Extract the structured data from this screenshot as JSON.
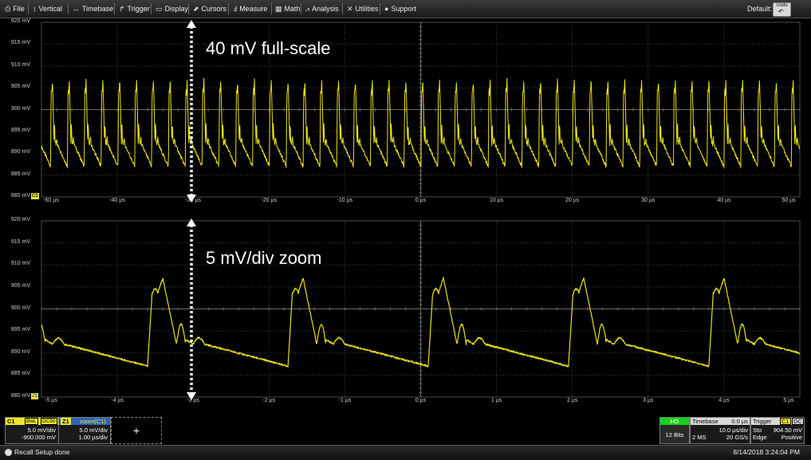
{
  "menu": {
    "items": [
      {
        "icon": "file-icon",
        "glyph": "⎙",
        "label": "File"
      },
      {
        "icon": "vertical-icon",
        "glyph": "↕",
        "label": "Vertical"
      },
      {
        "icon": "timebase-icon",
        "glyph": "↔",
        "label": "Timebase"
      },
      {
        "icon": "trigger-icon",
        "glyph": "↱",
        "label": "Trigger"
      },
      {
        "icon": "display-icon",
        "glyph": "▭",
        "label": "Display"
      },
      {
        "icon": "cursors-icon",
        "glyph": "⬈",
        "label": "Cursors"
      },
      {
        "icon": "measure-icon",
        "glyph": "Ⅎ",
        "label": "Measure"
      },
      {
        "icon": "math-icon",
        "glyph": "▦",
        "label": "Math"
      },
      {
        "icon": "analysis-icon",
        "glyph": "⩘",
        "label": "Analysis"
      },
      {
        "icon": "utilities-icon",
        "glyph": "✕",
        "label": "Utilities"
      },
      {
        "icon": "support-icon",
        "glyph": "●",
        "label": "Support"
      }
    ],
    "default_label": "Default:",
    "undo_label": "Undo"
  },
  "colors": {
    "trace": "#e8e01a",
    "c1_badge": "#f0e62a",
    "z1_badge": "#2f62b6",
    "hd_badge": "#19d11e",
    "grid": "#3a3a3a",
    "center_line": "#6a6a6a"
  },
  "top_grid": {
    "y_labels": [
      "920 mV",
      "915 mV",
      "910 mV",
      "905 mV",
      "900 mV",
      "895 mV",
      "890 mV",
      "885 mV",
      "880 mV"
    ],
    "x_labels": [
      "-50 µs",
      "-40 µs",
      "-30 µs",
      "-20 µs",
      "-10 µs",
      "0 µs",
      "10 µs",
      "20 µs",
      "30 µs",
      "40 µs",
      "50 µs"
    ],
    "annotation": "40 mV full-scale",
    "channel_marker": "C1",
    "y_range_mv": [
      880,
      920
    ],
    "x_range_us": [
      -50,
      50
    ],
    "period_us": 2.22
  },
  "bottom_grid": {
    "y_labels": [
      "920 mV",
      "915 mV",
      "910 mV",
      "905 mV",
      "900 mV",
      "895 mV",
      "890 mV",
      "885 mV",
      "880 mV"
    ],
    "x_labels": [
      "-5 µs",
      "-4 µs",
      "-3 µs",
      "-2 µs",
      "-1 µs",
      "0 µs",
      "1 µs",
      "2 µs",
      "3 µs",
      "4 µs",
      "5 µs"
    ],
    "annotation": "5 mV/div zoom",
    "channel_marker": "Z1",
    "y_range_mv": [
      880,
      920
    ],
    "x_range_us": [
      -5,
      5
    ]
  },
  "descriptors": {
    "c1": {
      "name": "C1",
      "bwl": "BwL",
      "coupling": "DC50",
      "scale": "5.0 mV/div",
      "offset": "-900.000 mV"
    },
    "z1": {
      "name": "Z1",
      "source": "zoom(C1)",
      "scale": "5.0 mV/div",
      "timescale": "1.00 µs/div"
    },
    "add_label": "+",
    "hd": {
      "badge": "HD",
      "bits": "12 Bits"
    },
    "timebase": {
      "title": "Timebase",
      "delay": "0.0 µs",
      "div": "10.0 µs/div",
      "samples": "2 MS",
      "rate": "20 GS/s"
    },
    "trigger": {
      "title": "Trigger",
      "source": "C1",
      "coupling": "DC",
      "mode": "Sto",
      "level": "904.50 mV",
      "type": "Edge",
      "slope": "Positive"
    }
  },
  "status": {
    "message": "Recall Setup done",
    "datetime": "8/14/2018 3:24:04 PM"
  }
}
